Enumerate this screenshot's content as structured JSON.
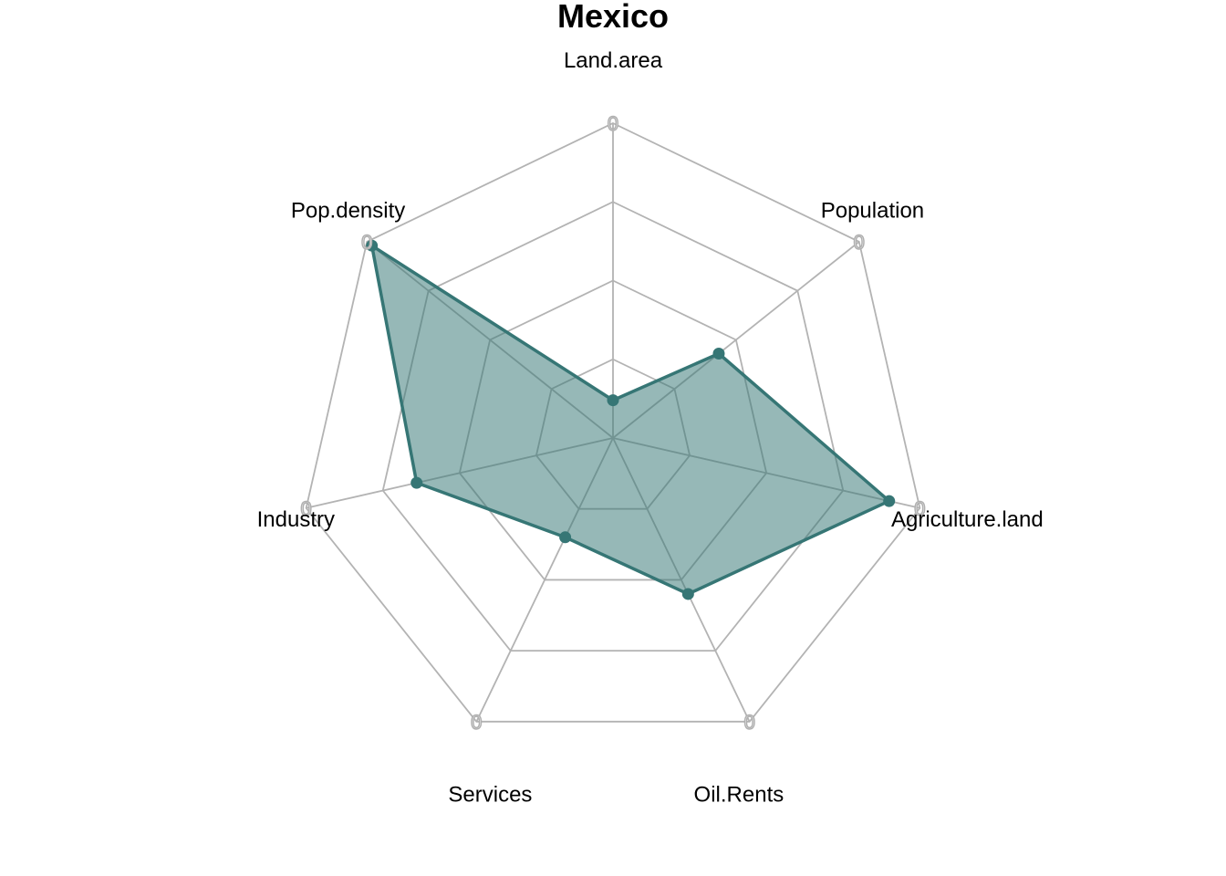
{
  "chart_data": {
    "type": "radar",
    "title": "Mexico",
    "axes": [
      "Land.area",
      "Population",
      "Agriculture.land",
      "Oil.Rents",
      "Services",
      "Industry",
      "Pop.density"
    ],
    "series": [
      {
        "values": [
          0.12,
          0.43,
          0.9,
          0.55,
          0.35,
          0.64,
          0.98
        ]
      }
    ],
    "range": [
      0,
      1
    ],
    "grid_levels": 4,
    "axis_tick_label": "0",
    "legend": "none",
    "colors": {
      "series_line": "#367675",
      "series_fill": "#367675",
      "series_fill_opacity": 0.52,
      "grid": "#b3b3b3"
    }
  }
}
